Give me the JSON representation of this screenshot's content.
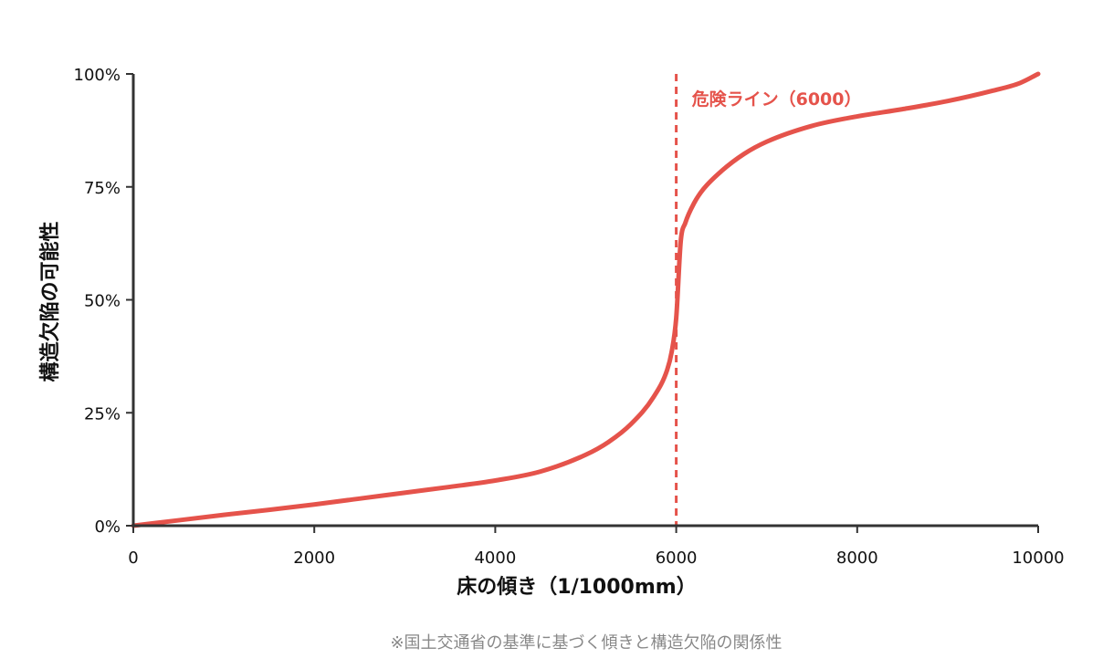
{
  "chart_data": {
    "type": "line",
    "title": "",
    "xlabel": "床の傾き（1/1000mm）",
    "ylabel": "構造欠陥の可能性",
    "xlim": [
      0,
      10000
    ],
    "ylim": [
      0,
      100
    ],
    "x_ticks": [
      0,
      2000,
      4000,
      6000,
      8000,
      10000
    ],
    "x_tick_labels": [
      "0",
      "2000",
      "4000",
      "6000",
      "8000",
      "10000"
    ],
    "y_ticks": [
      0,
      25,
      50,
      75,
      100
    ],
    "y_tick_labels": [
      "0%",
      "25%",
      "50%",
      "75%",
      "100%"
    ],
    "grid": false,
    "series": [
      {
        "color": "#E5534B",
        "x": [
          0,
          500,
          1000,
          1500,
          2000,
          2500,
          3000,
          3500,
          4000,
          4500,
          5000,
          5250,
          5500,
          5750,
          5900,
          5950,
          6000,
          6050,
          6100,
          6200,
          6300,
          6500,
          6750,
          7000,
          7500,
          8000,
          8500,
          9000,
          9500,
          9800,
          10000
        ],
        "y": [
          0,
          1.2,
          2.4,
          3.5,
          4.7,
          6.0,
          7.3,
          8.6,
          10.0,
          12.0,
          15.7,
          18.5,
          22.5,
          28.5,
          34.5,
          38.5,
          46,
          63,
          67,
          71.5,
          74.5,
          78.5,
          82.3,
          85,
          88.5,
          90.6,
          92.2,
          94,
          96.3,
          98,
          100
        ]
      }
    ],
    "annotations": [
      {
        "type": "vline",
        "x": 6000,
        "label": "危険ライン（6000）",
        "color": "#E5534B",
        "style": "dashed"
      }
    ]
  },
  "footnote": "※国土交通省の基準に基づく傾きと構造欠陥の関係性"
}
